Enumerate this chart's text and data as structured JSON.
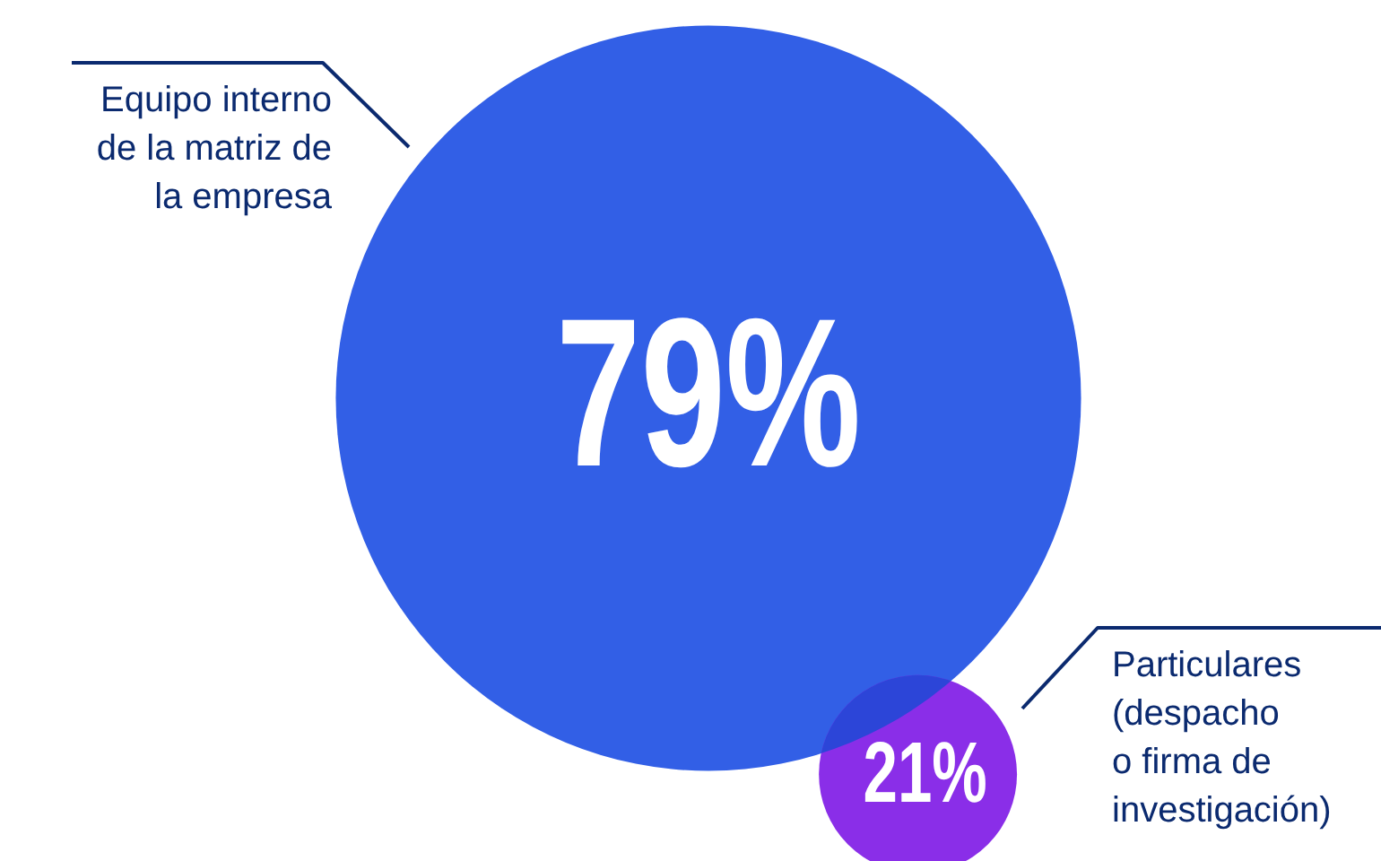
{
  "chart_data": {
    "type": "other",
    "categories": [
      "Equipo interno de la matriz de la empresa",
      "Particulares (despacho o firma de investigación)"
    ],
    "values": [
      79,
      21
    ],
    "colors": [
      "#325fe6",
      "#8a2ee8"
    ],
    "value_labels": [
      "79%",
      "21%"
    ]
  }
}
